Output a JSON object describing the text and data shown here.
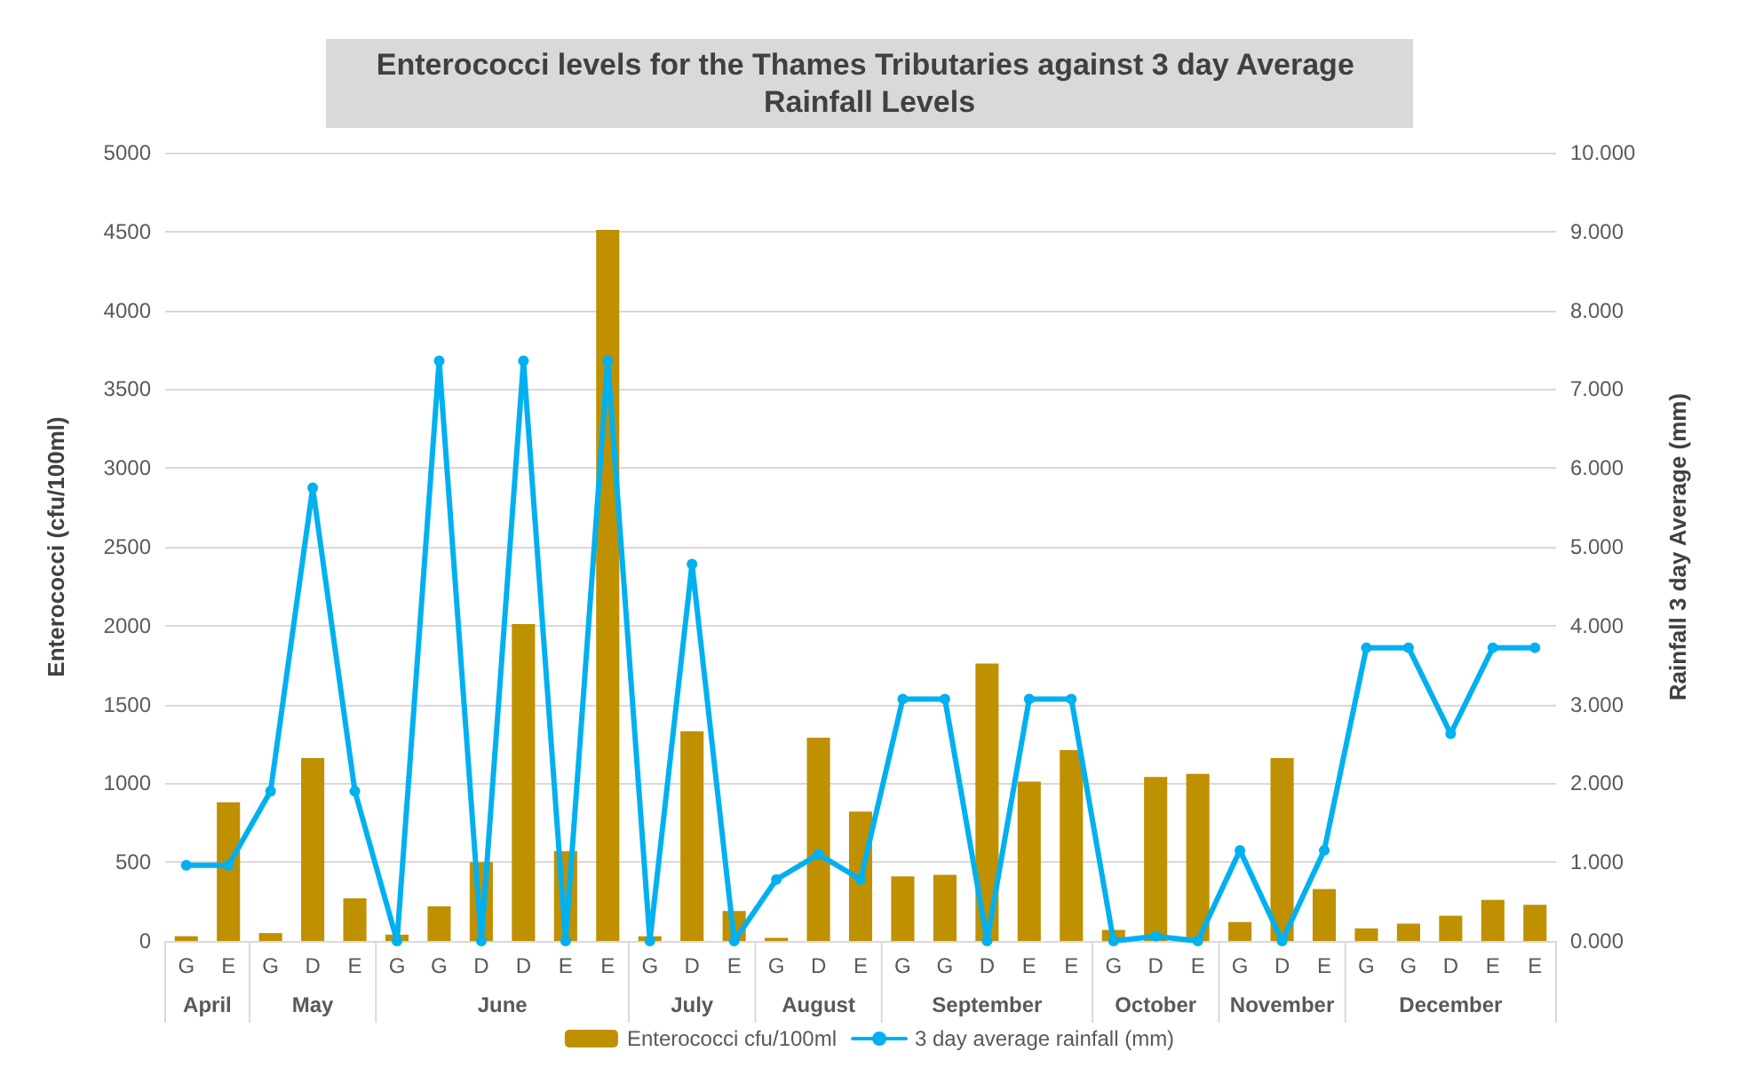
{
  "chart_data": {
    "type": "bar",
    "title": "Enterococci levels for the Thames Tributaries against 3 day Average Rainfall Levels",
    "ylabel": "Enterococci (cfu/100ml)",
    "y2label": "Rainfall 3 day Average (mm)",
    "categories": [
      "G",
      "E",
      "G",
      "D",
      "E",
      "G",
      "G",
      "D",
      "D",
      "E",
      "E",
      "G",
      "D",
      "E",
      "G",
      "D",
      "E",
      "G",
      "G",
      "D",
      "E",
      "E",
      "G",
      "D",
      "E",
      "G",
      "D",
      "E",
      "G",
      "G",
      "D",
      "E",
      "E"
    ],
    "annotations": [
      "April",
      "May",
      "June",
      "July",
      "August",
      "September",
      "October",
      "November",
      "December"
    ],
    "series": [
      {
        "name": "Enterococci cfu/100ml",
        "color": "#bf9000",
        "values": [
          30,
          880,
          50,
          1160,
          270,
          40,
          220,
          500,
          2010,
          570,
          4510,
          30,
          1330,
          190,
          20,
          1290,
          820,
          410,
          420,
          1760,
          1010,
          1210,
          70,
          1040,
          1060,
          120,
          1160,
          330,
          80,
          110,
          160,
          260,
          230
        ]
      },
      {
        "name": "3 day average rainfall (mm)",
        "type": "line",
        "axis": "y2",
        "color": "#00b0f0",
        "marker": "circle",
        "values": [
          0.96,
          0.96,
          1.9,
          5.75,
          1.9,
          0,
          7.36,
          0,
          7.36,
          0,
          7.36,
          0,
          4.78,
          0,
          0.78,
          1.1,
          0.78,
          3.07,
          3.07,
          0,
          3.07,
          3.07,
          0,
          0.06,
          0,
          1.15,
          0,
          1.15,
          3.72,
          3.72,
          2.63,
          3.72,
          3.72
        ]
      }
    ],
    "ylim": [
      0,
      5000
    ],
    "yticks": [
      0,
      500,
      1000,
      1500,
      2000,
      2500,
      3000,
      3500,
      4000,
      4500,
      5000
    ],
    "y2lim": [
      0,
      10
    ],
    "y2ticks": [
      {
        "value": 0,
        "label": "0.000"
      },
      {
        "value": 1,
        "label": "1.000"
      },
      {
        "value": 2,
        "label": "2.000"
      },
      {
        "value": 3,
        "label": "3.000"
      },
      {
        "value": 4,
        "label": "4.000"
      },
      {
        "value": 5,
        "label": "5.000"
      },
      {
        "value": 6,
        "label": "6.000"
      },
      {
        "value": 7,
        "label": "7.000"
      },
      {
        "value": 8,
        "label": "8.000"
      },
      {
        "value": 9,
        "label": "9.000"
      },
      {
        "value": 10,
        "label": "10.000"
      }
    ],
    "grid": "y",
    "legend": "bottom"
  }
}
